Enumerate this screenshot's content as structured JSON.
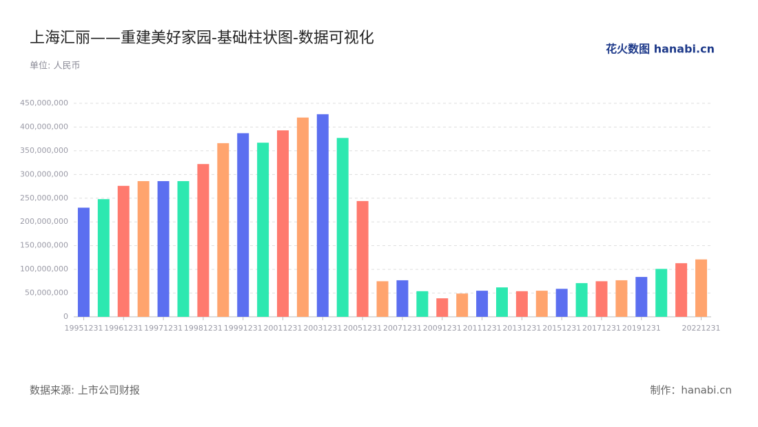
{
  "chart_data": {
    "type": "bar",
    "title": "上海汇丽——重建美好家园-基础柱状图-数据可视化",
    "subtitle": "单位: 人民币",
    "logo": "花火数图 hanabi.cn",
    "source": "数据来源: 上市公司财报",
    "credit": "制作：hanabi.cn",
    "categories": [
      "19951231",
      null,
      "19961231",
      null,
      "19971231",
      null,
      "19981231",
      null,
      "19991231",
      null,
      "20011231",
      null,
      "20031231",
      null,
      "20051231",
      null,
      "20071231",
      null,
      "20091231",
      null,
      "20111231",
      null,
      "20131231",
      null,
      "20151231",
      null,
      "20171231",
      null,
      "20191231",
      null,
      null,
      "20221231"
    ],
    "values": [
      230000000,
      248000000,
      276000000,
      286000000,
      286000000,
      286000000,
      322000000,
      366000000,
      387000000,
      367000000,
      393000000,
      420000000,
      427000000,
      377000000,
      244000000,
      75000000,
      77000000,
      54000000,
      39000000,
      49000000,
      55000000,
      62000000,
      54000000,
      55000000,
      59000000,
      71000000,
      75000000,
      77000000,
      84000000,
      101000000,
      113000000,
      121000000
    ],
    "colors": [
      "#5b6ff0",
      "#2de8b0",
      "#ff7a6e",
      "#ffa46e"
    ],
    "ylim": [
      0,
      450000000
    ],
    "yticks": [
      0,
      {
        "value": 50000000,
        "label": "50,000,000"
      },
      {
        "value": 100000000,
        "label": "100,000,000"
      },
      {
        "value": 150000000,
        "label": "150,000,000"
      },
      {
        "value": 200000000,
        "label": "200,000,000"
      },
      {
        "value": 250000000,
        "label": "250,000,000"
      },
      {
        "value": 300000000,
        "label": "300,000,000"
      },
      {
        "value": 350000000,
        "label": "350,000,000"
      },
      {
        "value": 400000000,
        "label": "400,000,000"
      },
      {
        "value": 450000000,
        "label": "450,000,000"
      }
    ],
    "grid": true
  }
}
